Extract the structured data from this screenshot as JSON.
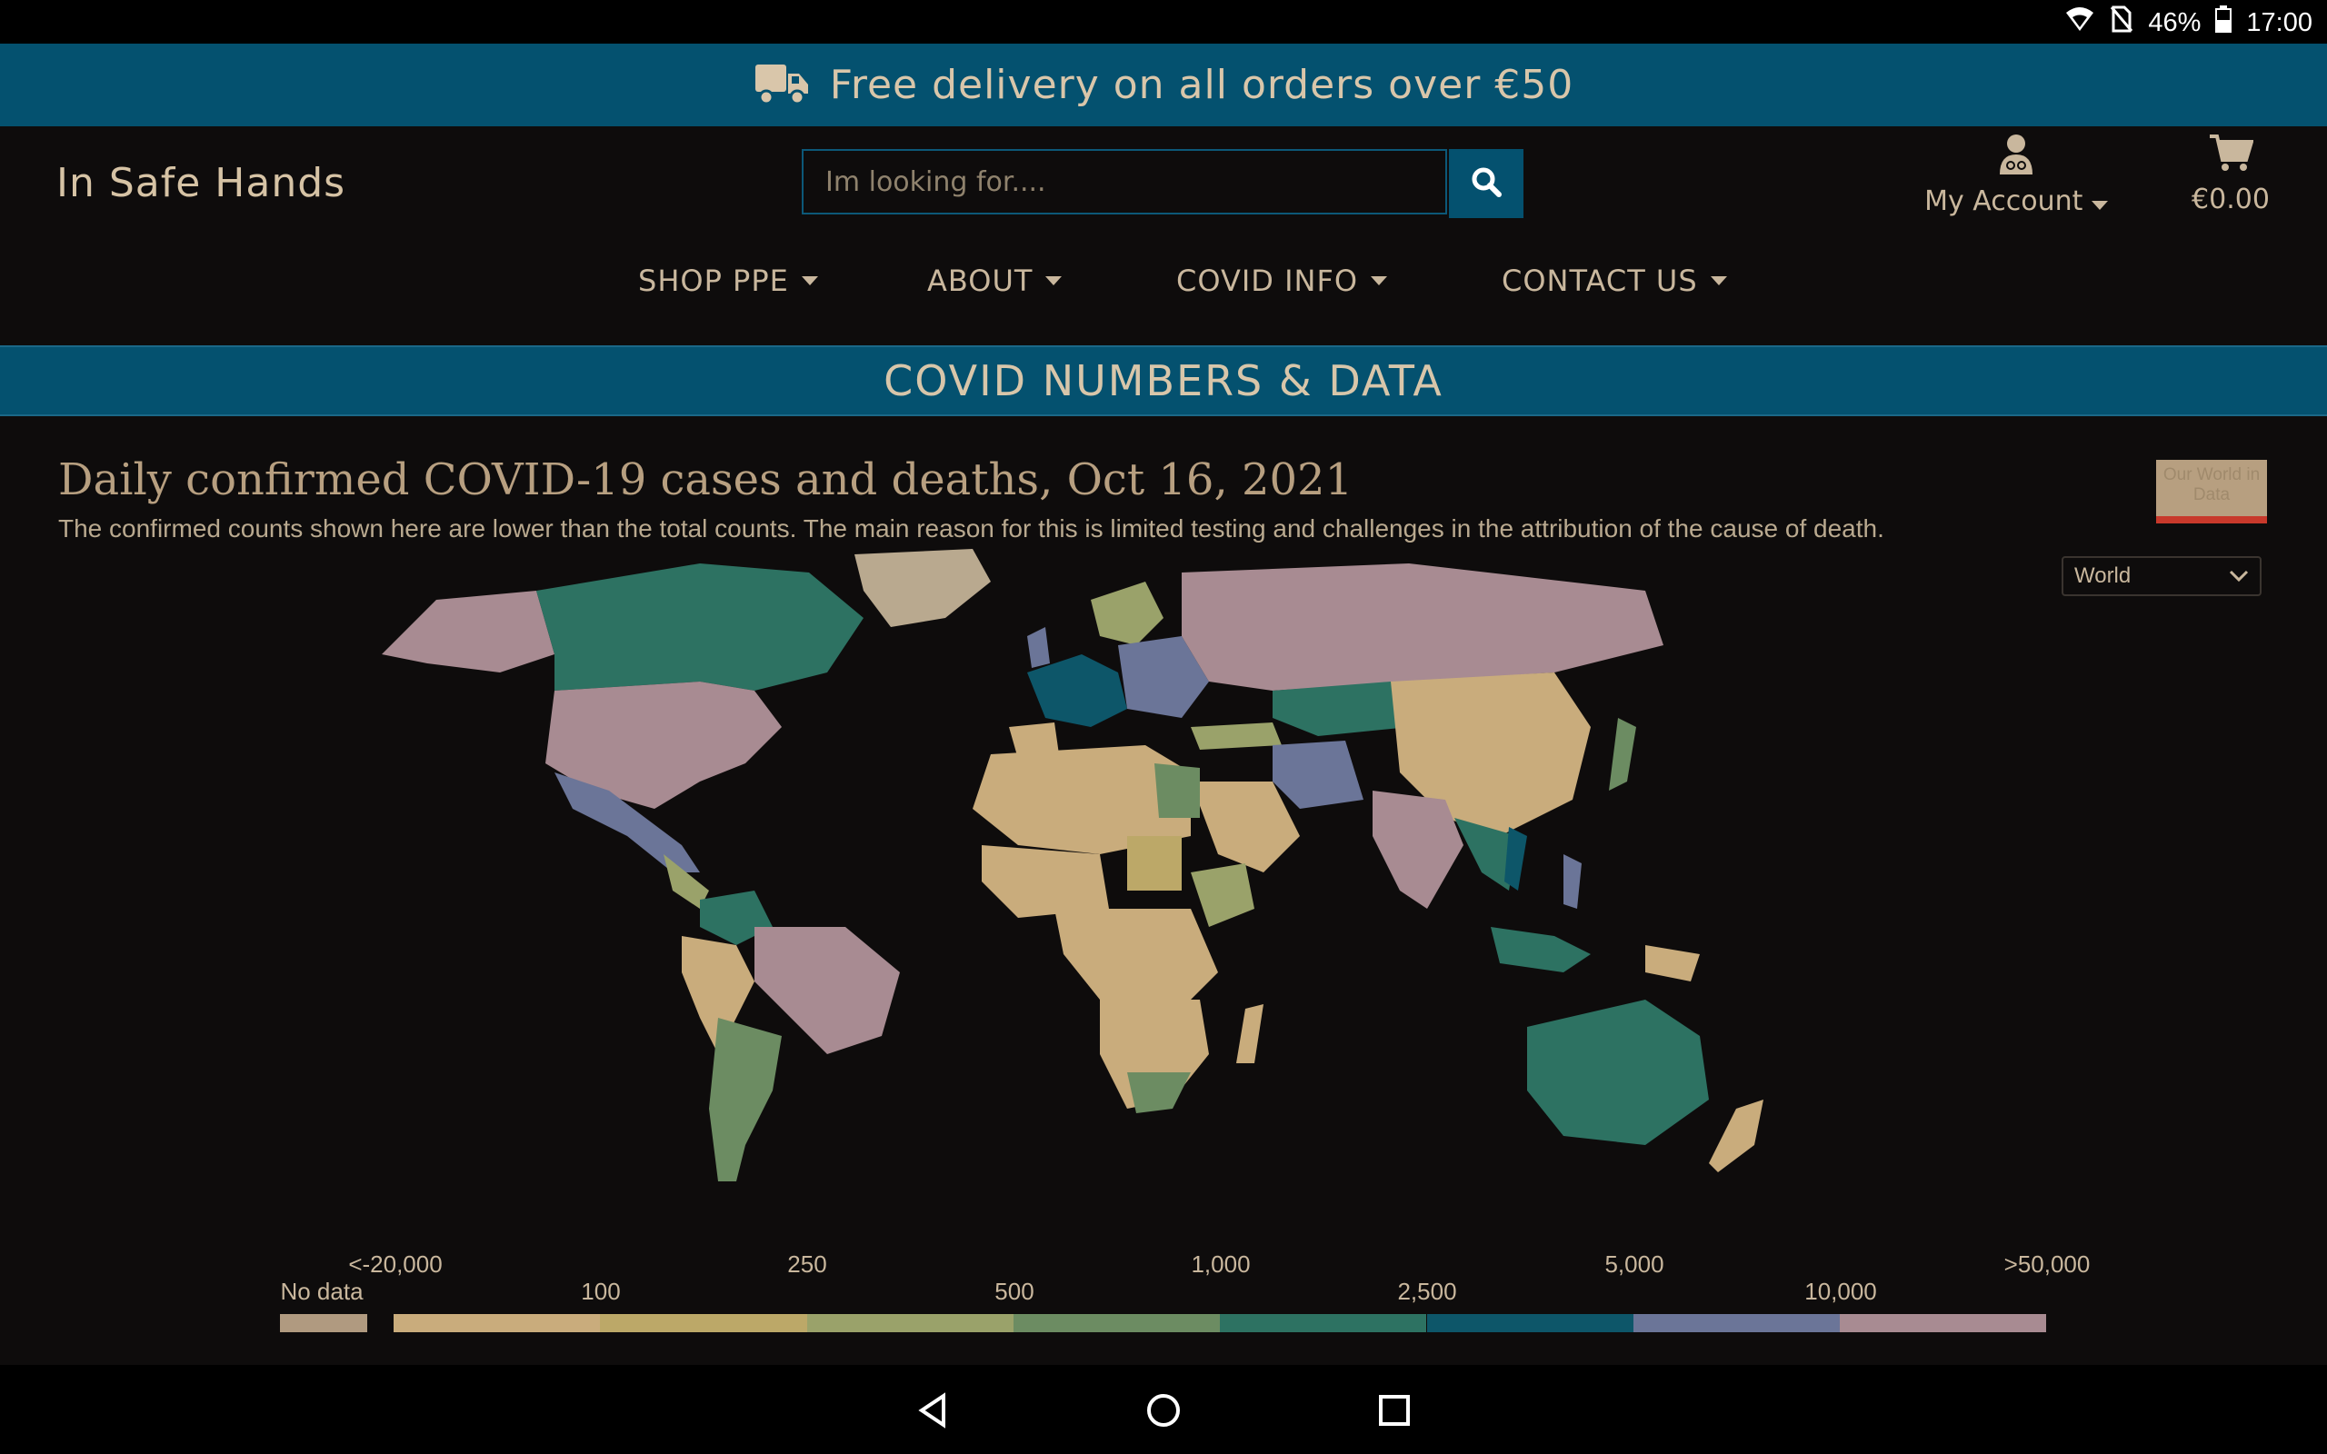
{
  "status_bar": {
    "battery": "46%",
    "time": "17:00"
  },
  "promo": {
    "text": "Free delivery on all orders over €50",
    "icon": "delivery-truck-icon"
  },
  "header": {
    "brand": "In Safe Hands",
    "search_placeholder": "Im looking for....",
    "account_label": "My Account",
    "cart_total": "€0.00"
  },
  "nav": {
    "items": [
      {
        "label": "SHOP PPE"
      },
      {
        "label": "ABOUT"
      },
      {
        "label": "COVID INFO"
      },
      {
        "label": "CONTACT US"
      }
    ]
  },
  "section": {
    "title": "COVID NUMBERS & DATA"
  },
  "chart": {
    "title": "Daily confirmed COVID-19 cases and deaths, Oct 16, 2021",
    "subtitle": "The confirmed counts shown here are lower than the total counts. The main reason for this is limited testing and challenges in the attribution of the cause of death.",
    "logo_text": "Our World in Data",
    "region_selected": "World"
  },
  "chart_data": {
    "type": "choropleth-map",
    "legend": {
      "no_data_label": "No data",
      "bins_upper_labels": [
        "<-20,000",
        "250",
        "1,000",
        "5,000",
        ">50,000"
      ],
      "bins_lower_labels": [
        "100",
        "500",
        "2,500",
        "10,000"
      ],
      "colors": [
        "#c9ac7c",
        "#bca868",
        "#9aa26a",
        "#6c8c62",
        "#2d7262",
        "#0d5669",
        "#6b7598",
        "#a88b92"
      ],
      "no_data_color": "#b09a80"
    }
  },
  "colors": {
    "accent": "#04516f",
    "background": "#0e0c0c",
    "text": "#c9b79d"
  }
}
